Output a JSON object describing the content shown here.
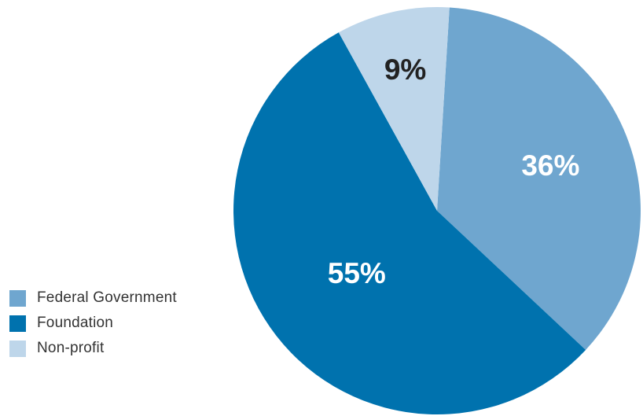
{
  "chart_data": {
    "type": "pie",
    "categories": [
      "Federal Government",
      "Foundation",
      "Non-profit"
    ],
    "values": [
      36,
      55,
      9
    ],
    "data_labels": [
      "36%",
      "55%",
      "9%"
    ],
    "colors": [
      "#6fa6cf",
      "#0072ae",
      "#bed6ea"
    ],
    "label_colors": [
      "#ffffff",
      "#ffffff",
      "#222222"
    ],
    "start_angle_deg": 3.5,
    "legend_position": "left-bottom",
    "title": "",
    "xlabel": "",
    "ylabel": ""
  }
}
